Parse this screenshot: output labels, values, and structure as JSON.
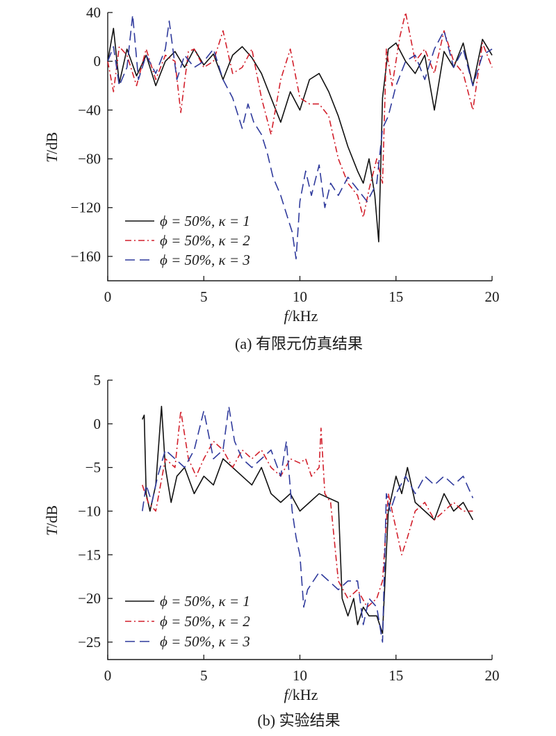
{
  "colors": {
    "kappa1": "#111111",
    "kappa2": "#d21f2b",
    "kappa3": "#2f3a9c",
    "axis": "#1a1a1a"
  },
  "chart_data": [
    {
      "type": "line",
      "caption": "(a) 有限元仿真结果",
      "xlabel_var": "f",
      "xlabel_unit": "/kHz",
      "ylabel_var": "T",
      "ylabel_unit": "/dB",
      "xlim": [
        0,
        20
      ],
      "ylim": [
        -180,
        40
      ],
      "xticks": [
        0,
        5,
        10,
        15,
        20
      ],
      "yticks": [
        40,
        0,
        -40,
        -80,
        -120,
        -160
      ],
      "legend_position": "bottom-left",
      "series": [
        {
          "name": "ϕ = 50%, κ = 1",
          "style": "solid",
          "color": "#111111",
          "x": [
            0,
            0.3,
            0.6,
            1,
            1.5,
            2,
            2.5,
            3,
            3.5,
            4,
            4.5,
            5,
            5.5,
            6,
            6.5,
            7,
            7.5,
            8,
            8.5,
            9,
            9.5,
            10,
            10.5,
            11,
            11.5,
            12,
            12.5,
            13,
            13.3,
            13.6,
            13.9,
            14.1,
            14.3,
            14.6,
            15,
            15.5,
            16,
            16.5,
            17,
            17.5,
            18,
            18.5,
            19,
            19.5,
            20
          ],
          "y": [
            0,
            27,
            -18,
            10,
            -12,
            5,
            -20,
            0,
            8,
            -5,
            10,
            -3,
            6,
            -15,
            5,
            12,
            3,
            -10,
            -30,
            -50,
            -25,
            -40,
            -15,
            -10,
            -25,
            -45,
            -70,
            -90,
            -100,
            -80,
            -110,
            -148,
            -30,
            10,
            15,
            0,
            -10,
            5,
            -40,
            8,
            -5,
            15,
            -20,
            18,
            5
          ]
        },
        {
          "name": "ϕ = 50%, κ = 2",
          "style": "dashdot",
          "color": "#d21f2b",
          "x": [
            0,
            0.3,
            0.6,
            1,
            1.5,
            2,
            2.5,
            3,
            3.5,
            3.8,
            4.2,
            4.5,
            5,
            5.5,
            6,
            6.5,
            7,
            7.5,
            8,
            8.5,
            9,
            9.5,
            10,
            10.5,
            11,
            11.5,
            12,
            12.5,
            13,
            13.3,
            13.6,
            14,
            14.3,
            14.5,
            14.8,
            15.2,
            15.5,
            16,
            16.5,
            17,
            17.5,
            18,
            18.5,
            19,
            19.5,
            20
          ],
          "y": [
            0,
            -25,
            12,
            5,
            -20,
            10,
            -15,
            5,
            0,
            -42,
            8,
            10,
            -5,
            0,
            25,
            -10,
            -5,
            10,
            -30,
            -60,
            -15,
            10,
            -30,
            -35,
            -35,
            -45,
            -80,
            -100,
            -110,
            -128,
            -105,
            -80,
            -100,
            10,
            -20,
            20,
            40,
            0,
            10,
            -10,
            25,
            0,
            -10,
            -40,
            15,
            -5
          ]
        },
        {
          "name": "ϕ = 50%, κ = 3",
          "style": "dashed",
          "color": "#2f3a9c",
          "x": [
            0,
            0.3,
            0.6,
            1,
            1.3,
            1.6,
            2,
            2.5,
            3,
            3.2,
            3.6,
            4,
            4.5,
            5,
            5.5,
            6,
            6.5,
            7,
            7.3,
            7.6,
            8,
            8.3,
            8.6,
            9,
            9.3,
            9.6,
            9.8,
            10,
            10.3,
            10.6,
            11,
            11.3,
            11.6,
            12,
            12.5,
            13,
            13.5,
            14,
            14.3,
            14.6,
            15,
            15.5,
            16,
            16.5,
            17,
            17.5,
            18,
            18.5,
            19,
            19.5,
            20
          ],
          "y": [
            0,
            12,
            -20,
            -5,
            38,
            -15,
            5,
            -10,
            10,
            33,
            -15,
            5,
            -5,
            0,
            10,
            -15,
            -30,
            -55,
            -35,
            -50,
            -60,
            -75,
            -95,
            -110,
            -125,
            -140,
            -162,
            -115,
            -90,
            -110,
            -85,
            -120,
            -100,
            -110,
            -95,
            -105,
            -115,
            -100,
            -55,
            -45,
            -20,
            0,
            5,
            -15,
            10,
            25,
            -5,
            10,
            -20,
            5,
            10
          ]
        }
      ],
      "legend": [
        "ϕ = 50%, κ = 1",
        "ϕ = 50%, κ = 2",
        "ϕ = 50%, κ = 3"
      ]
    },
    {
      "type": "line",
      "caption": "(b) 实验结果",
      "xlabel_var": "f",
      "xlabel_unit": "/kHz",
      "ylabel_var": "T",
      "ylabel_unit": "/dB",
      "xlim": [
        0,
        20
      ],
      "ylim": [
        -27,
        5
      ],
      "xticks": [
        0,
        5,
        10,
        15,
        20
      ],
      "yticks": [
        5,
        0,
        -5,
        -10,
        -15,
        -20,
        -25
      ],
      "legend_position": "bottom-left",
      "series": [
        {
          "name": "ϕ = 50%, κ = 1",
          "style": "solid",
          "color": "#111111",
          "x": [
            1.8,
            1.9,
            2.0,
            2.2,
            2.5,
            2.8,
            3.0,
            3.3,
            3.6,
            4,
            4.5,
            5,
            5.5,
            6,
            6.5,
            7,
            7.5,
            8,
            8.5,
            9,
            9.5,
            10,
            10.5,
            11,
            11.5,
            12,
            12.2,
            12.5,
            12.8,
            13,
            13.3,
            13.6,
            14,
            14.3,
            14.6,
            15,
            15.3,
            15.6,
            16,
            16.5,
            17,
            17.5,
            18,
            18.5,
            19
          ],
          "y": [
            0.5,
            1,
            -8,
            -10,
            -7,
            2,
            -5,
            -9,
            -6,
            -5,
            -8,
            -6,
            -7,
            -4,
            -5,
            -6,
            -7,
            -5,
            -8,
            -9,
            -8,
            -10,
            -9,
            -8,
            -8.5,
            -9,
            -20,
            -22,
            -20,
            -23,
            -21,
            -22,
            -22,
            -24,
            -10,
            -6,
            -8,
            -5,
            -9,
            -10,
            -11,
            -8,
            -10,
            -9,
            -11
          ]
        },
        {
          "name": "ϕ = 50%, κ = 2",
          "style": "dashdot",
          "color": "#d21f2b",
          "x": [
            1.8,
            2.1,
            2.5,
            3,
            3.5,
            3.8,
            4.2,
            4.6,
            5,
            5.5,
            6,
            6.5,
            7,
            7.5,
            8,
            8.5,
            9,
            9.5,
            10,
            10.3,
            10.6,
            11,
            11.1,
            11.3,
            11.6,
            12,
            12.5,
            13,
            13.5,
            14,
            14.3,
            14.6,
            15,
            15.3,
            15.6,
            16,
            16.5,
            17,
            17.5,
            18,
            18.5,
            19
          ],
          "y": [
            -7,
            -9,
            -10,
            -4,
            -5,
            1.5,
            -4,
            -6,
            -4,
            -2,
            -3,
            -5,
            -3,
            -4,
            -3,
            -5,
            -6,
            -4,
            -4.5,
            -4,
            -6,
            -5,
            -0.5,
            -8,
            -9,
            -18,
            -20,
            -19,
            -21,
            -20,
            -18,
            -8,
            -12,
            -15,
            -13,
            -10,
            -9,
            -11,
            -10,
            -9,
            -10,
            -10
          ]
        },
        {
          "name": "ϕ = 50%, κ = 3",
          "style": "dashed",
          "color": "#2f3a9c",
          "x": [
            1.8,
            2.0,
            2.3,
            2.6,
            3,
            3.5,
            4,
            4.5,
            5,
            5.5,
            6,
            6.3,
            6.6,
            7,
            7.5,
            8,
            8.5,
            9,
            9.3,
            9.6,
            9.8,
            10,
            10.2,
            10.4,
            10.7,
            11,
            11.5,
            12,
            12.5,
            13,
            13.3,
            13.6,
            14,
            14.3,
            14.5,
            14.7,
            15,
            15.5,
            16,
            16.5,
            17,
            17.5,
            18,
            18.5,
            19
          ],
          "y": [
            -10,
            -7,
            -9,
            -6,
            -3,
            -4,
            -5,
            -3,
            1.5,
            -4,
            -3,
            2,
            -2,
            -4,
            -5,
            -4,
            -3,
            -6,
            -2,
            -10,
            -13,
            -15,
            -21,
            -19,
            -18,
            -17,
            -18,
            -19,
            -18,
            -18,
            -23,
            -20,
            -21,
            -25,
            -8,
            -10,
            -8,
            -6,
            -8,
            -6,
            -7,
            -6,
            -7,
            -6,
            -8.5
          ]
        }
      ],
      "legend": [
        "ϕ = 50%, κ = 1",
        "ϕ = 50%, κ = 2",
        "ϕ = 50%, κ = 3"
      ]
    }
  ]
}
